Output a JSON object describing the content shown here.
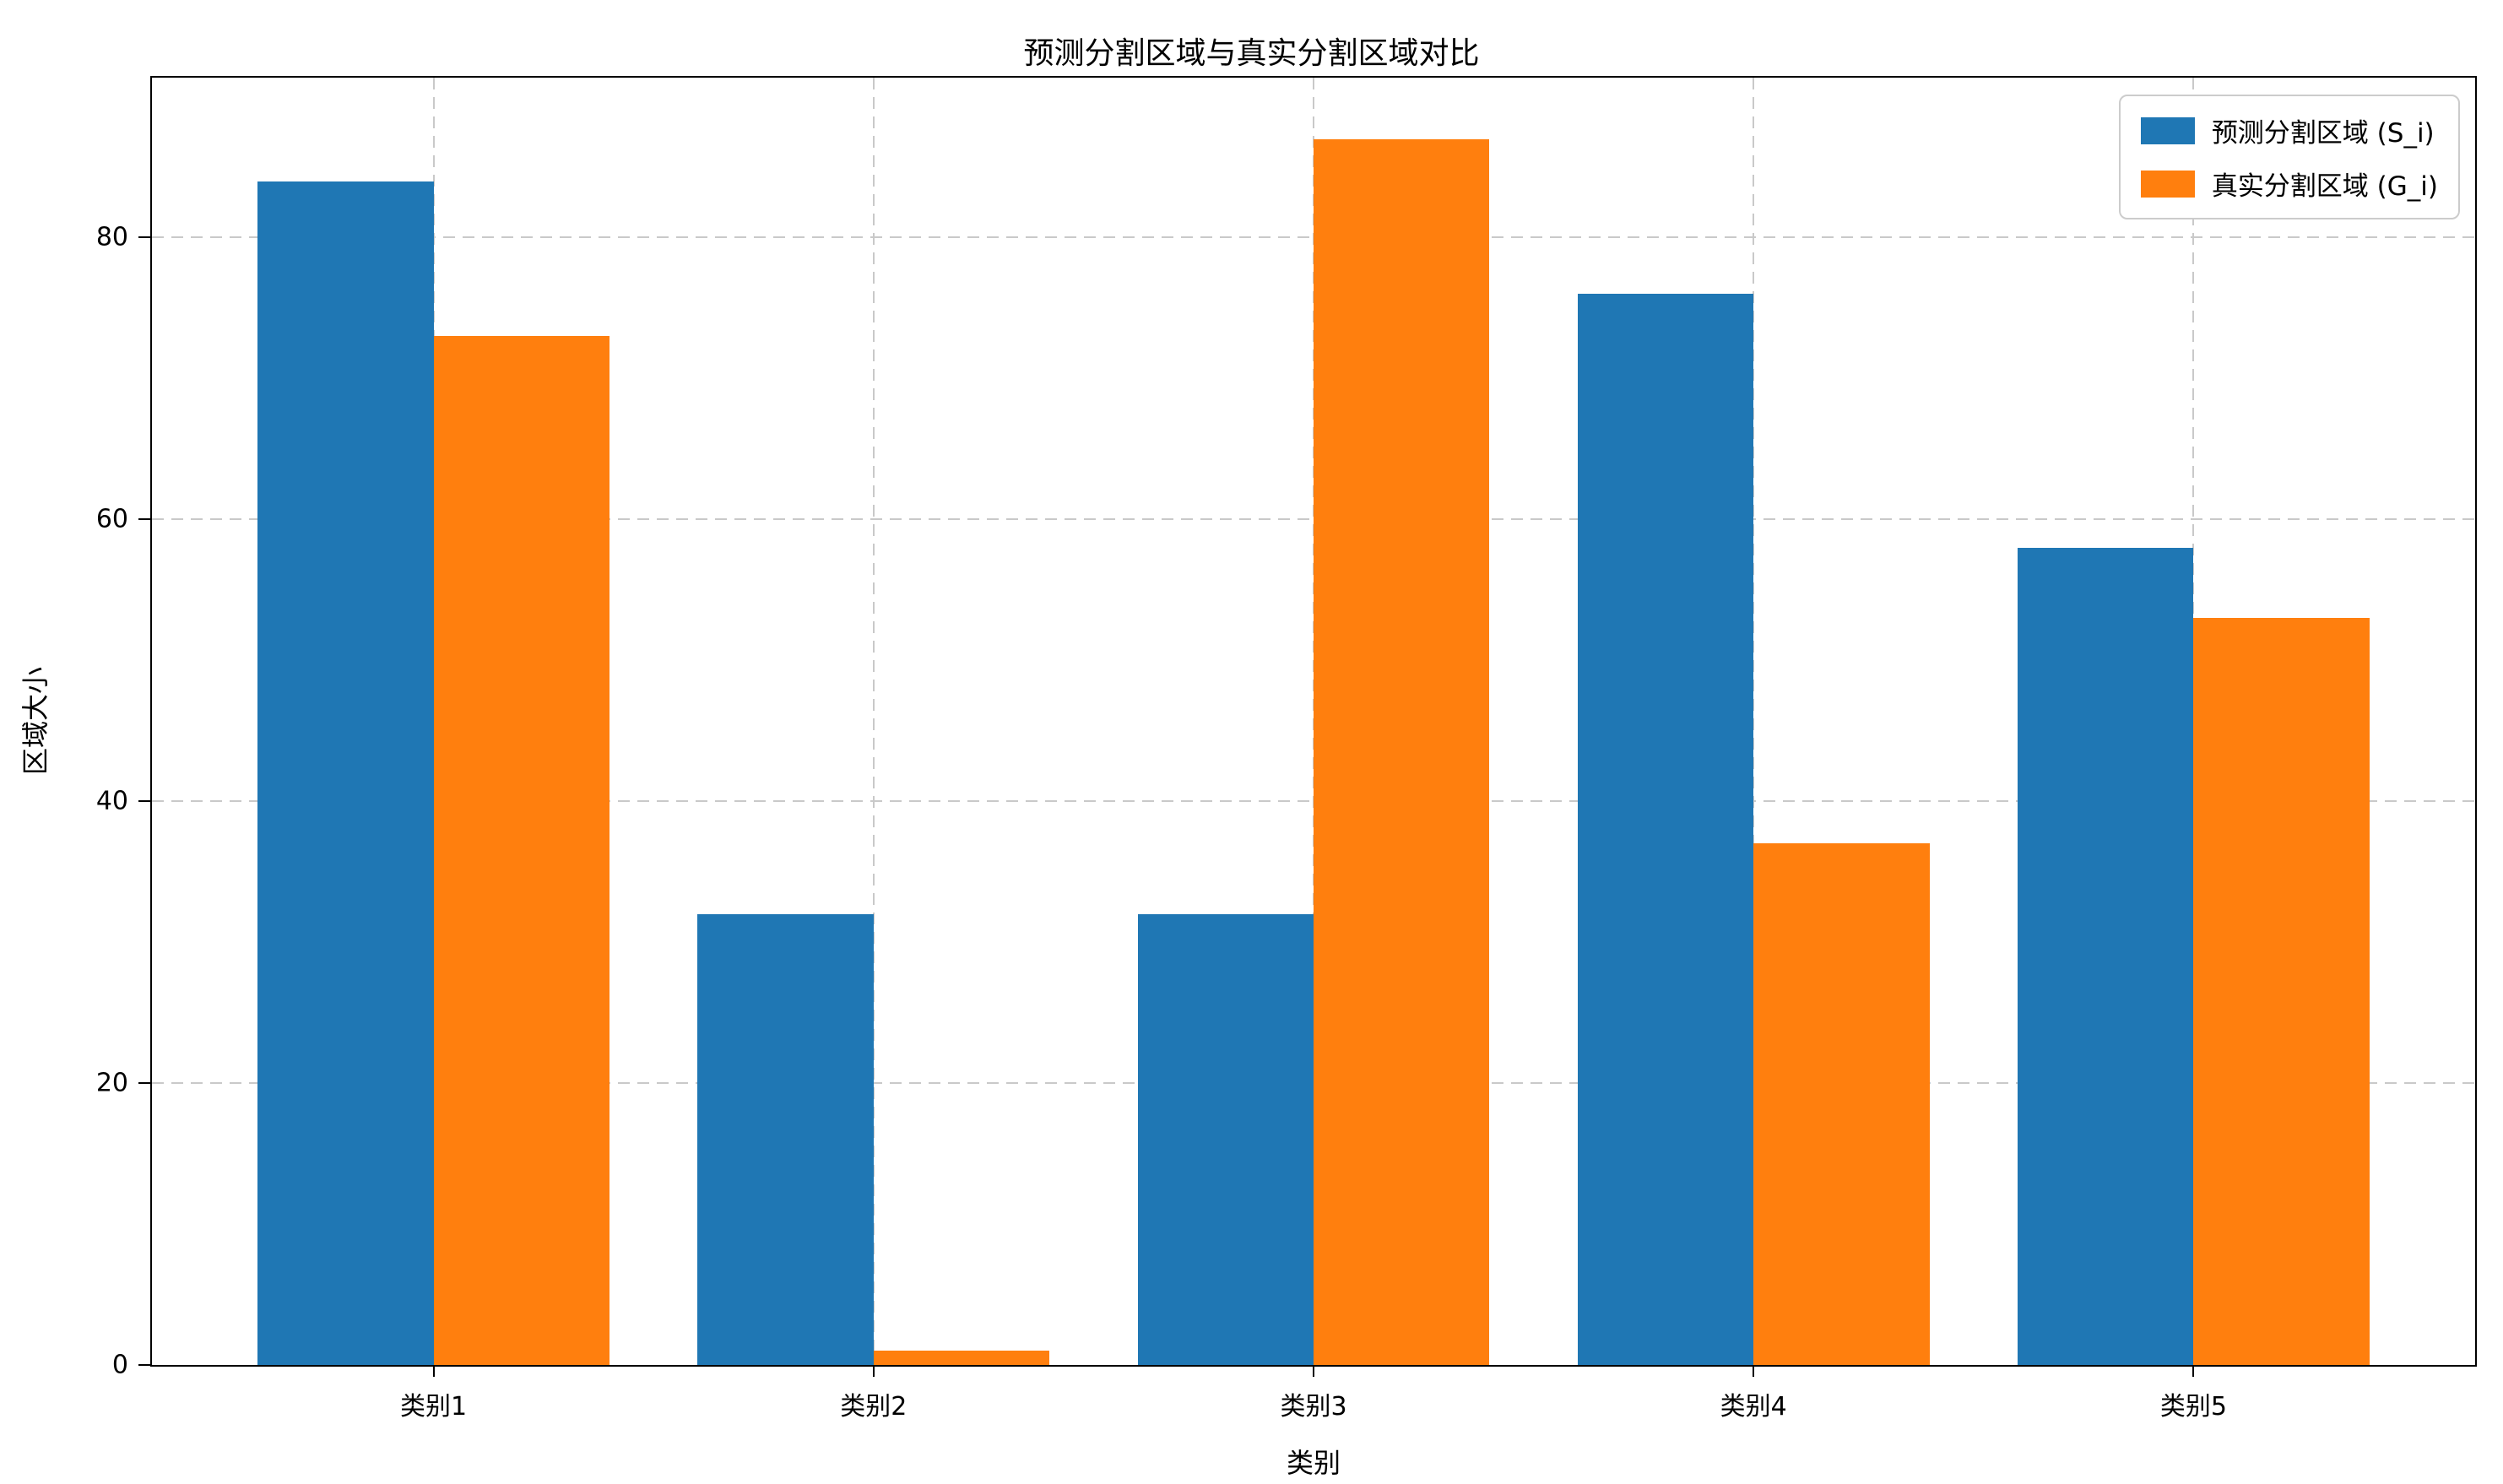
{
  "chart_data": {
    "type": "bar",
    "title": "预测分割区域与真实分割区域对比",
    "xlabel": "类别",
    "ylabel": "区域大小",
    "categories": [
      "类别1",
      "类别2",
      "类别3",
      "类别4",
      "类别5"
    ],
    "series": [
      {
        "name": "预测分割区域 (S_i)",
        "color": "#1f77b4",
        "values": [
          84,
          32,
          32,
          76,
          58
        ]
      },
      {
        "name": "真实分割区域 (G_i)",
        "color": "#ff7f0e",
        "values": [
          73,
          1,
          87,
          37,
          53
        ]
      }
    ],
    "yticks": [
      0,
      20,
      40,
      60,
      80
    ],
    "ylim": [
      0,
      91.35
    ],
    "grid": "dashed",
    "grid_color": "#c9c9c9",
    "legend_position": "top-right",
    "background": "#ffffff",
    "axis_color": "#000000"
  }
}
